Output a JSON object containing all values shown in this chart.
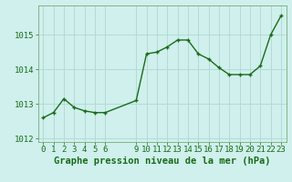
{
  "x": [
    0,
    1,
    2,
    3,
    4,
    5,
    6,
    9,
    10,
    11,
    12,
    13,
    14,
    15,
    16,
    17,
    18,
    19,
    20,
    21,
    22,
    23
  ],
  "y": [
    1012.6,
    1012.75,
    1013.15,
    1012.9,
    1012.8,
    1012.75,
    1012.75,
    1013.1,
    1014.45,
    1014.5,
    1014.65,
    1014.85,
    1014.85,
    1014.45,
    1014.3,
    1014.05,
    1013.85,
    1013.85,
    1013.85,
    1014.1,
    1015.0,
    1015.55
  ],
  "line_color": "#1a6b1a",
  "marker": "+",
  "marker_size": 3,
  "linewidth": 1.0,
  "bg_color": "#cff0ec",
  "grid_color": "#b0d8d4",
  "xlabel": "Graphe pression niveau de la mer (hPa)",
  "xlabel_color": "#1a6b1a",
  "xlabel_fontsize": 7.5,
  "ytick_labels": [
    "1012",
    "1013",
    "1014",
    "1015"
  ],
  "ytick_positions": [
    1012,
    1013,
    1014,
    1015
  ],
  "xtick_positions": [
    0,
    1,
    2,
    3,
    4,
    5,
    6,
    9,
    10,
    11,
    12,
    13,
    14,
    15,
    16,
    17,
    18,
    19,
    20,
    21,
    22,
    23
  ],
  "xtick_labels": [
    "0",
    "1",
    "2",
    "3",
    "4",
    "5",
    "6",
    "9",
    "10",
    "11",
    "12",
    "13",
    "14",
    "15",
    "16",
    "17",
    "18",
    "19",
    "20",
    "21",
    "22",
    "23"
  ],
  "ylim": [
    1011.9,
    1015.85
  ],
  "xlim": [
    -0.5,
    23.5
  ],
  "tick_color": "#1a6b1a",
  "tick_fontsize": 6.5,
  "spine_color": "#7aaa7a"
}
